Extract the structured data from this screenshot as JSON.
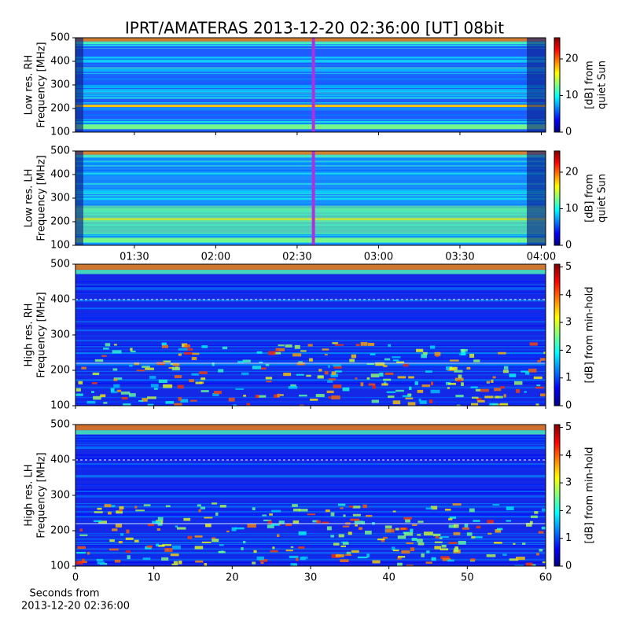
{
  "title": "IPRT/AMATERAS 2013-12-20 02:36:00 [UT]   08bit",
  "chart_data": [
    {
      "type": "heatmap",
      "ylabel": [
        "Low res. RH",
        "Frequency [MHz]"
      ],
      "ylim": [
        100,
        500
      ],
      "yticks": [
        100,
        200,
        300,
        400,
        500
      ],
      "xlim": [
        68.3,
        241.6
      ],
      "xticks": [
        {
          "value": 90,
          "label": "01:30"
        },
        {
          "value": 120,
          "label": "02:00"
        },
        {
          "value": 150,
          "label": "02:30"
        },
        {
          "value": 180,
          "label": "03:00"
        },
        {
          "value": 210,
          "label": "03:30"
        },
        {
          "value": 240,
          "label": "04:00"
        }
      ],
      "xticklabels": false,
      "marker_x": 156,
      "marker_color": "#b030e0",
      "background": "#1e5cff",
      "colorbar": {
        "lim": [
          0,
          25.8
        ],
        "ticks": [
          0,
          10,
          20
        ],
        "label": [
          "[dB] from",
          "quiet Sun"
        ]
      }
    },
    {
      "type": "heatmap",
      "ylabel": [
        "Low res. LH",
        "Frequency [MHz]"
      ],
      "ylim": [
        100,
        500
      ],
      "yticks": [
        100,
        200,
        300,
        400,
        500
      ],
      "xlim": [
        68.3,
        241.6
      ],
      "xticks": [
        {
          "value": 90,
          "label": "01:30"
        },
        {
          "value": 120,
          "label": "02:00"
        },
        {
          "value": 150,
          "label": "02:30"
        },
        {
          "value": 180,
          "label": "03:00"
        },
        {
          "value": 210,
          "label": "03:30"
        },
        {
          "value": 240,
          "label": "04:00"
        }
      ],
      "xticklabels": true,
      "marker_x": 156,
      "marker_color": "#b030e0",
      "background": "#1a8cff",
      "colorbar": {
        "lim": [
          0,
          25.8
        ],
        "ticks": [
          0,
          10,
          20
        ],
        "label": [
          "[dB] from",
          "quiet Sun"
        ]
      }
    },
    {
      "type": "heatmap",
      "ylabel": [
        "High res. RH",
        "Frequency [MHz]"
      ],
      "ylim": [
        100,
        500
      ],
      "yticks": [
        100,
        200,
        300,
        400,
        500
      ],
      "xlim": [
        0,
        60
      ],
      "xticks": [
        0,
        10,
        20,
        30,
        40,
        50,
        60
      ],
      "xticklabels": false,
      "background": "#1428e6",
      "colorbar": {
        "lim": [
          0,
          5.1
        ],
        "ticks": [
          0,
          1,
          2,
          3,
          4,
          5
        ],
        "label": [
          "[dB] from min-hold"
        ]
      }
    },
    {
      "type": "heatmap",
      "ylabel": [
        "High res. LH",
        "Frequency [MHz]"
      ],
      "ylim": [
        100,
        500
      ],
      "yticks": [
        100,
        200,
        300,
        400,
        500
      ],
      "xlim": [
        0,
        60
      ],
      "xticks": [
        0,
        10,
        20,
        30,
        40,
        50,
        60
      ],
      "xticklabels": true,
      "background": "#1428e6",
      "xlabel": [
        "Seconds from",
        "2013-12-20 02:36:00"
      ],
      "colorbar": {
        "lim": [
          0,
          5.1
        ],
        "ticks": [
          0,
          1,
          2,
          3,
          4,
          5
        ],
        "label": [
          "[dB] from min-hold"
        ]
      }
    }
  ]
}
